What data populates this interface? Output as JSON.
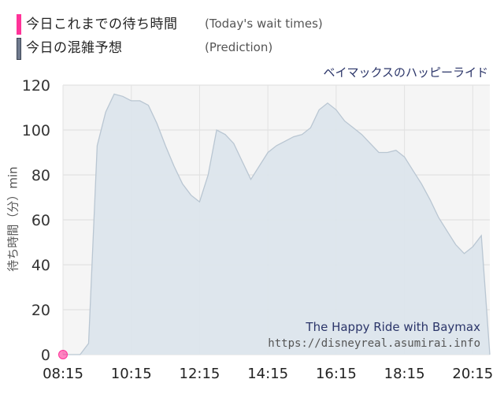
{
  "legend": {
    "today_jp": "今日これまでの待ち時間",
    "today_en": "(Today's wait times)",
    "prediction_jp": "今日の混雑予想",
    "prediction_en": "(Prediction)",
    "today_color": "#ff3399",
    "prediction_color": "#6f7a8e"
  },
  "attraction": "ベイマックスのハッピーライド",
  "credit": {
    "line1": "The Happy Ride with Baymax",
    "line2": "https://disneyreal.asumirai.info"
  },
  "chart_data": {
    "type": "area",
    "ylabel": "待ち時間（分）min",
    "ylim": [
      0,
      120
    ],
    "yticks": [
      0,
      20,
      40,
      60,
      80,
      100,
      120
    ],
    "xticks": [
      "08:15",
      "10:15",
      "12:15",
      "14:15",
      "16:15",
      "18:15",
      "20:15"
    ],
    "xlim": [
      "08:15",
      "20:45"
    ],
    "grid": true,
    "series": [
      {
        "name": "今日の混雑予想",
        "fill": "#dce5ec",
        "stroke": "#b9c6d2",
        "points": [
          [
            "08:15",
            0
          ],
          [
            "08:45",
            0
          ],
          [
            "09:00",
            5
          ],
          [
            "09:15",
            93
          ],
          [
            "09:30",
            108
          ],
          [
            "09:45",
            116
          ],
          [
            "10:00",
            115
          ],
          [
            "10:15",
            113
          ],
          [
            "10:30",
            113
          ],
          [
            "10:45",
            111
          ],
          [
            "11:00",
            103
          ],
          [
            "11:15",
            93
          ],
          [
            "11:30",
            84
          ],
          [
            "11:45",
            76
          ],
          [
            "12:00",
            71
          ],
          [
            "12:15",
            68
          ],
          [
            "12:30",
            80
          ],
          [
            "12:45",
            100
          ],
          [
            "13:00",
            98
          ],
          [
            "13:15",
            94
          ],
          [
            "13:30",
            86
          ],
          [
            "13:45",
            78
          ],
          [
            "14:00",
            84
          ],
          [
            "14:15",
            90
          ],
          [
            "14:30",
            93
          ],
          [
            "14:45",
            95
          ],
          [
            "15:00",
            97
          ],
          [
            "15:15",
            98
          ],
          [
            "15:30",
            101
          ],
          [
            "15:45",
            109
          ],
          [
            "16:00",
            112
          ],
          [
            "16:15",
            109
          ],
          [
            "16:30",
            104
          ],
          [
            "16:45",
            101
          ],
          [
            "17:00",
            98
          ],
          [
            "17:15",
            94
          ],
          [
            "17:30",
            90
          ],
          [
            "17:45",
            90
          ],
          [
            "18:00",
            91
          ],
          [
            "18:15",
            88
          ],
          [
            "18:30",
            82
          ],
          [
            "18:45",
            76
          ],
          [
            "19:00",
            69
          ],
          [
            "19:15",
            61
          ],
          [
            "19:30",
            55
          ],
          [
            "19:45",
            49
          ],
          [
            "20:00",
            45
          ],
          [
            "20:15",
            48
          ],
          [
            "20:30",
            53
          ],
          [
            "20:45",
            0
          ]
        ]
      },
      {
        "name": "今日これまでの待ち時間",
        "color": "#ff3399",
        "points": [
          [
            "08:15",
            0
          ]
        ]
      }
    ]
  }
}
